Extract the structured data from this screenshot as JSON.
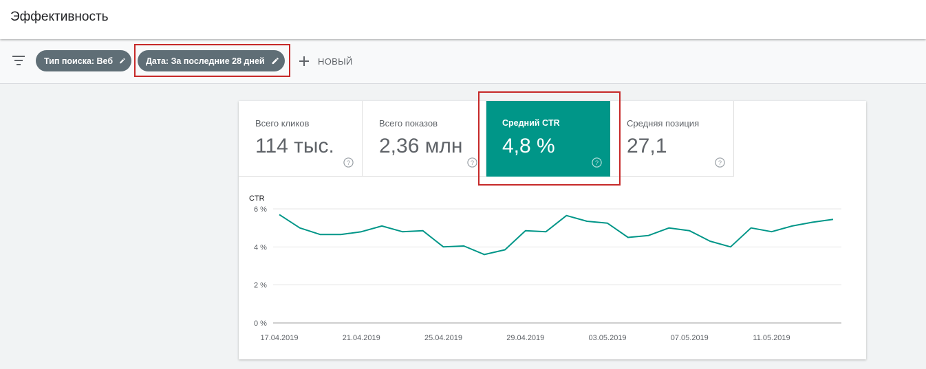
{
  "header": {
    "title": "Эффективность"
  },
  "filters": {
    "chips": [
      {
        "label": "Тип поиска: Веб"
      },
      {
        "label": "Дата: За последние 28 дней"
      }
    ],
    "new_label": "НОВЫЙ"
  },
  "metrics": [
    {
      "label": "Всего кликов",
      "value": "114 тыс."
    },
    {
      "label": "Всего показов",
      "value": "2,36 млн"
    },
    {
      "label": "Средний CTR",
      "value": "4,8 %",
      "selected": true
    },
    {
      "label": "Средняя позиция",
      "value": "27,1"
    }
  ],
  "colors": {
    "accent": "#009688",
    "highlight": "#c62828",
    "chip": "#5f6e76"
  },
  "chart_data": {
    "type": "line",
    "ylabel": "CTR",
    "ylim": [
      0,
      6
    ],
    "yticks": [
      {
        "value": 0,
        "label": "0 %"
      },
      {
        "value": 2,
        "label": "2 %"
      },
      {
        "value": 4,
        "label": "4 %"
      },
      {
        "value": 6,
        "label": "6 %"
      }
    ],
    "x": [
      "17.04.2019",
      "18.04.2019",
      "19.04.2019",
      "20.04.2019",
      "21.04.2019",
      "22.04.2019",
      "23.04.2019",
      "24.04.2019",
      "25.04.2019",
      "26.04.2019",
      "27.04.2019",
      "28.04.2019",
      "29.04.2019",
      "30.04.2019",
      "01.05.2019",
      "02.05.2019",
      "03.05.2019",
      "04.05.2019",
      "05.05.2019",
      "06.05.2019",
      "07.05.2019",
      "08.05.2019",
      "09.05.2019",
      "10.05.2019",
      "11.05.2019",
      "12.05.2019",
      "13.05.2019",
      "14.05.2019"
    ],
    "xtick_labels": [
      "17.04.2019",
      "21.04.2019",
      "25.04.2019",
      "29.04.2019",
      "03.05.2019",
      "07.05.2019",
      "11.05.2019"
    ],
    "series": [
      {
        "values": [
          5.7,
          5.0,
          4.65,
          4.65,
          4.8,
          5.1,
          4.8,
          4.85,
          4.0,
          4.05,
          3.6,
          3.85,
          4.85,
          4.8,
          5.65,
          5.35,
          5.25,
          4.5,
          4.6,
          5.0,
          4.85,
          4.3,
          4.0,
          5.0,
          4.8,
          5.1,
          5.3,
          5.45
        ]
      }
    ],
    "grid": true,
    "line_color": "#009688"
  }
}
